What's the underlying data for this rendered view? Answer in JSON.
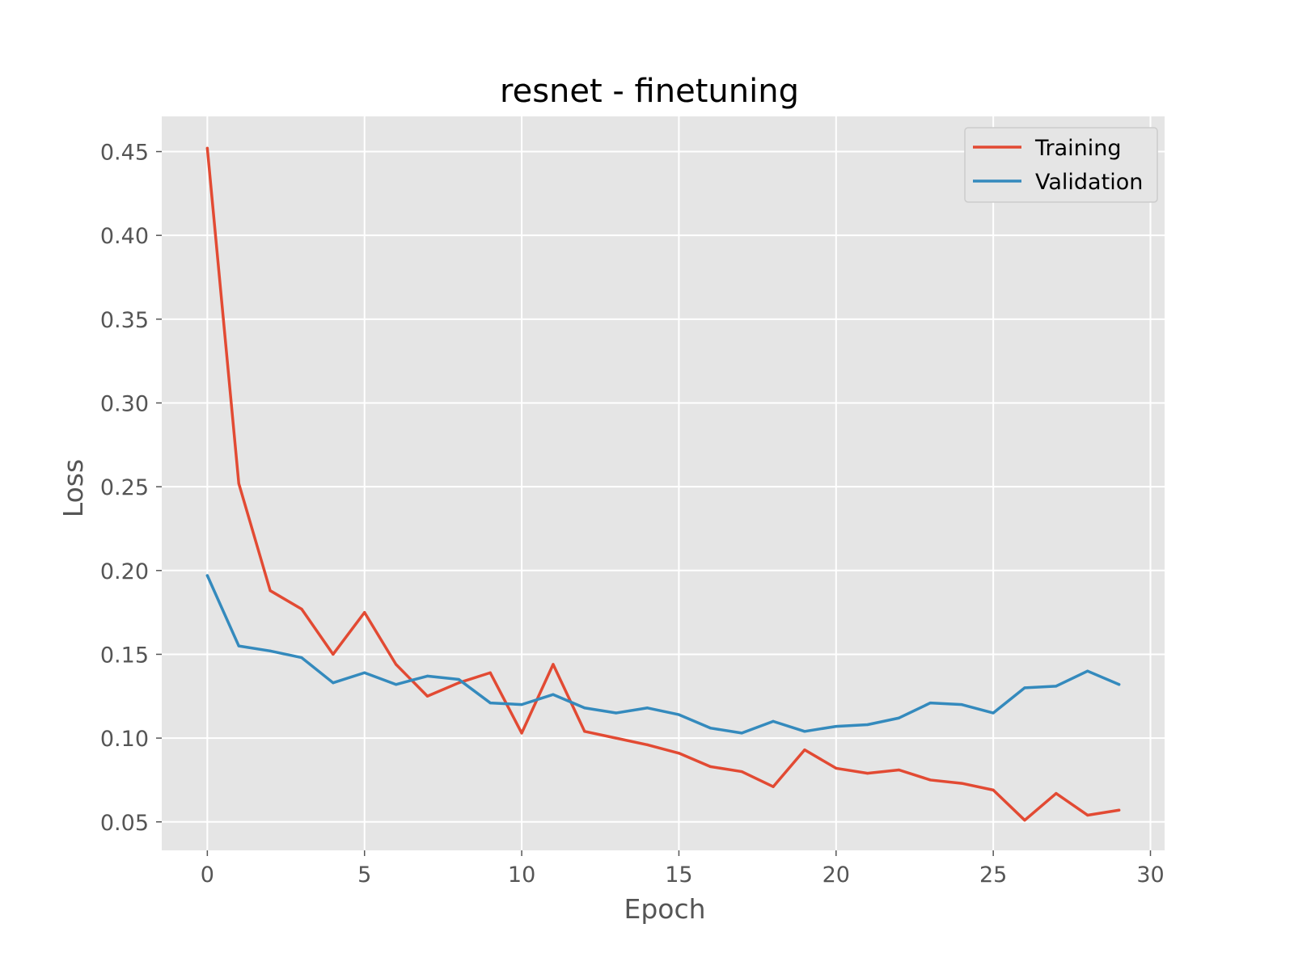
{
  "chart_data": {
    "type": "line",
    "title": "resnet - finetuning",
    "xlabel": "Epoch",
    "ylabel": "Loss",
    "xlim": [
      -1.45,
      30.45
    ],
    "ylim": [
      0.033,
      0.471
    ],
    "xticks": [
      0,
      5,
      10,
      15,
      20,
      25,
      30
    ],
    "xtick_labels": [
      "0",
      "5",
      "10",
      "15",
      "20",
      "25",
      "30"
    ],
    "yticks": [
      0.05,
      0.1,
      0.15,
      0.2,
      0.25,
      0.3,
      0.35,
      0.4,
      0.45
    ],
    "ytick_labels": [
      "0.05",
      "0.10",
      "0.15",
      "0.20",
      "0.25",
      "0.30",
      "0.35",
      "0.40",
      "0.45"
    ],
    "grid": true,
    "legend_position": "top-right",
    "x": [
      0,
      1,
      2,
      3,
      4,
      5,
      6,
      7,
      8,
      9,
      10,
      11,
      12,
      13,
      14,
      15,
      16,
      17,
      18,
      19,
      20,
      21,
      22,
      23,
      24,
      25,
      26,
      27,
      28,
      29
    ],
    "series": [
      {
        "name": "Training",
        "color": "#E24A33",
        "values": [
          0.452,
          0.252,
          0.188,
          0.177,
          0.15,
          0.175,
          0.144,
          0.125,
          0.133,
          0.139,
          0.103,
          0.144,
          0.104,
          0.1,
          0.096,
          0.091,
          0.083,
          0.08,
          0.071,
          0.093,
          0.082,
          0.079,
          0.081,
          0.075,
          0.073,
          0.069,
          0.051,
          0.067,
          0.054,
          0.057
        ]
      },
      {
        "name": "Validation",
        "color": "#348ABD",
        "values": [
          0.197,
          0.155,
          0.152,
          0.148,
          0.133,
          0.139,
          0.132,
          0.137,
          0.135,
          0.121,
          0.12,
          0.126,
          0.118,
          0.115,
          0.118,
          0.114,
          0.106,
          0.103,
          0.11,
          0.104,
          0.107,
          0.108,
          0.112,
          0.121,
          0.12,
          0.115,
          0.13,
          0.131,
          0.14,
          0.132
        ]
      }
    ]
  },
  "colors": {
    "plot_background": "#E5E5E5",
    "grid": "#FFFFFF",
    "tick": "#555555"
  }
}
